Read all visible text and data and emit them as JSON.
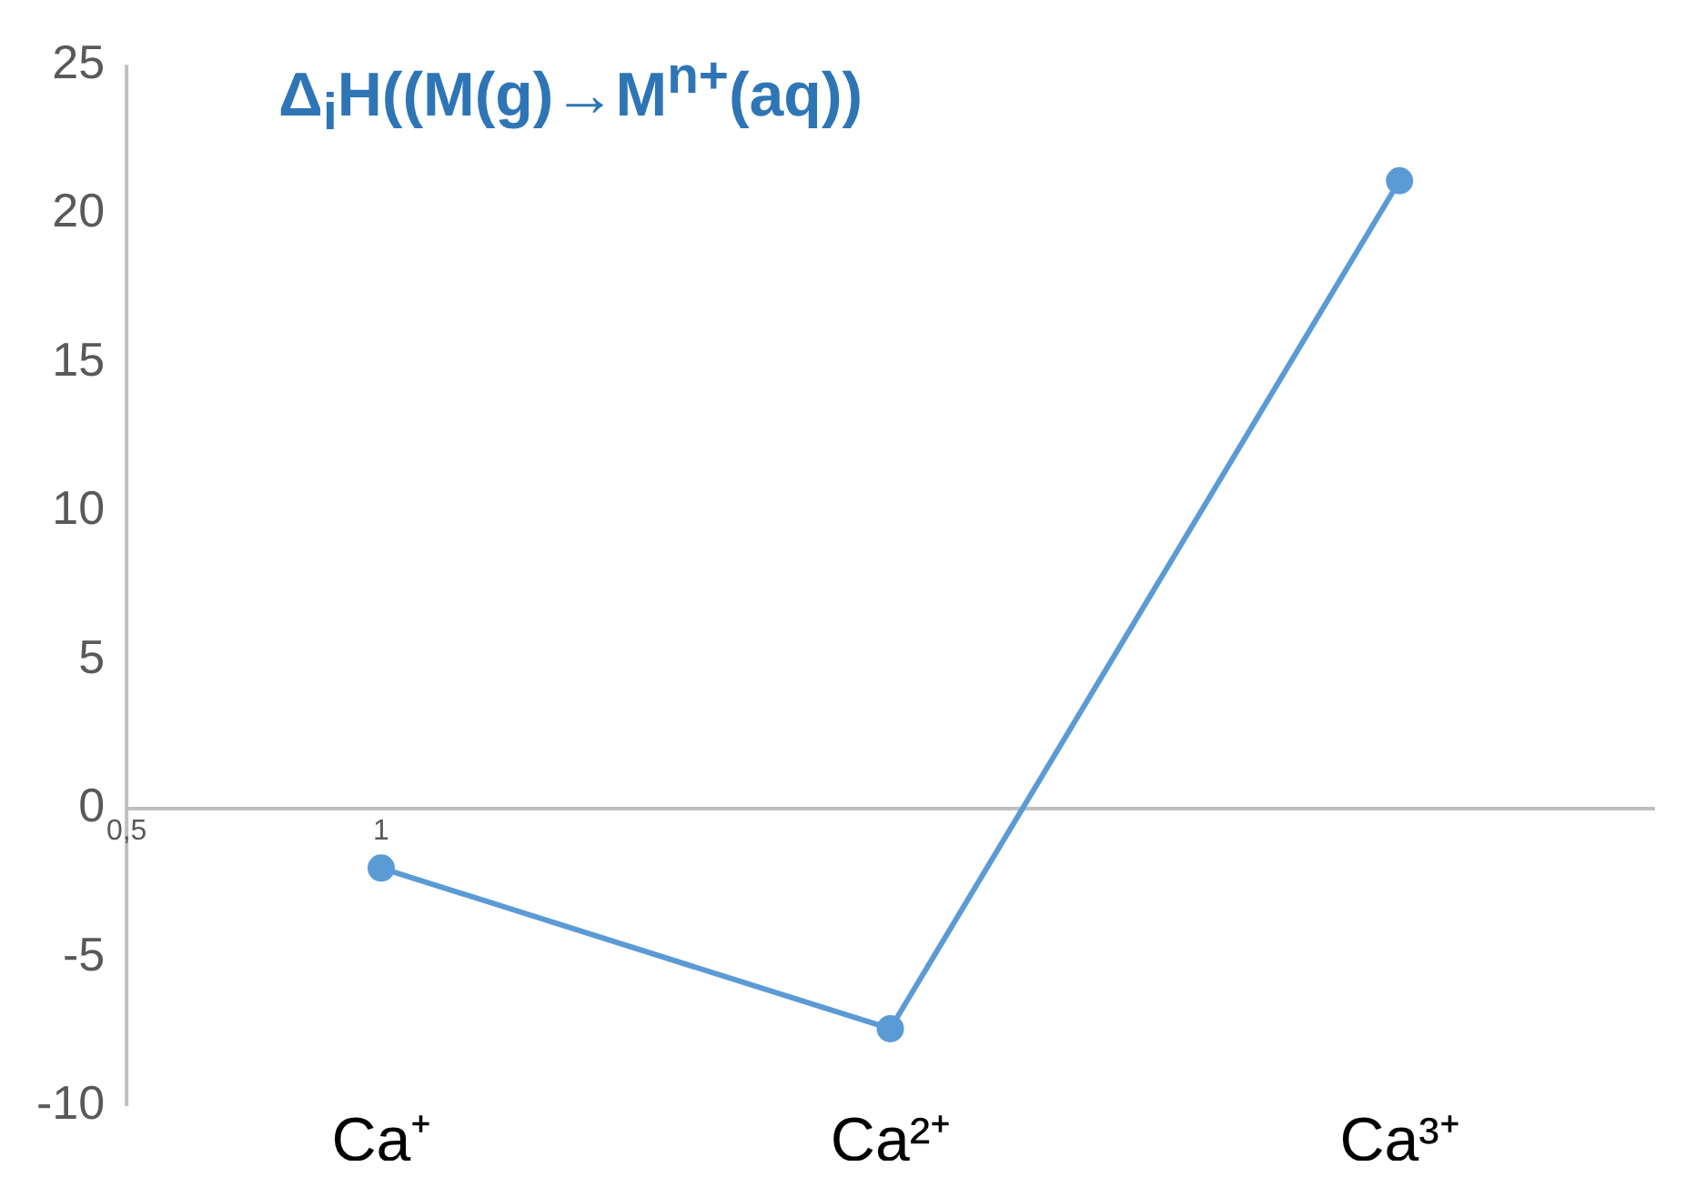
{
  "chart_data": {
    "type": "line",
    "title": "Δ$_{i}$H((M(g)→M$^{n+}$(aq))",
    "x": [
      1,
      2,
      3
    ],
    "series": [
      {
        "color": "#5b9bd5",
        "values": [
          -2,
          -7.4,
          21.1
        ]
      }
    ],
    "xlim": [
      0.5,
      3.5
    ],
    "xticks": [
      {
        "value": 0.5,
        "label": "0,5"
      },
      {
        "value": 1,
        "label": "1"
      }
    ],
    "ylim": [
      -10,
      25
    ],
    "yticks": [
      -10,
      -5,
      0,
      5,
      10,
      15,
      20,
      25
    ],
    "annotations": [
      "Ca⁺",
      "Ca²⁺",
      "Ca³⁺"
    ],
    "grid": false,
    "legend": false,
    "marker": "circle",
    "line_style": "solid"
  }
}
